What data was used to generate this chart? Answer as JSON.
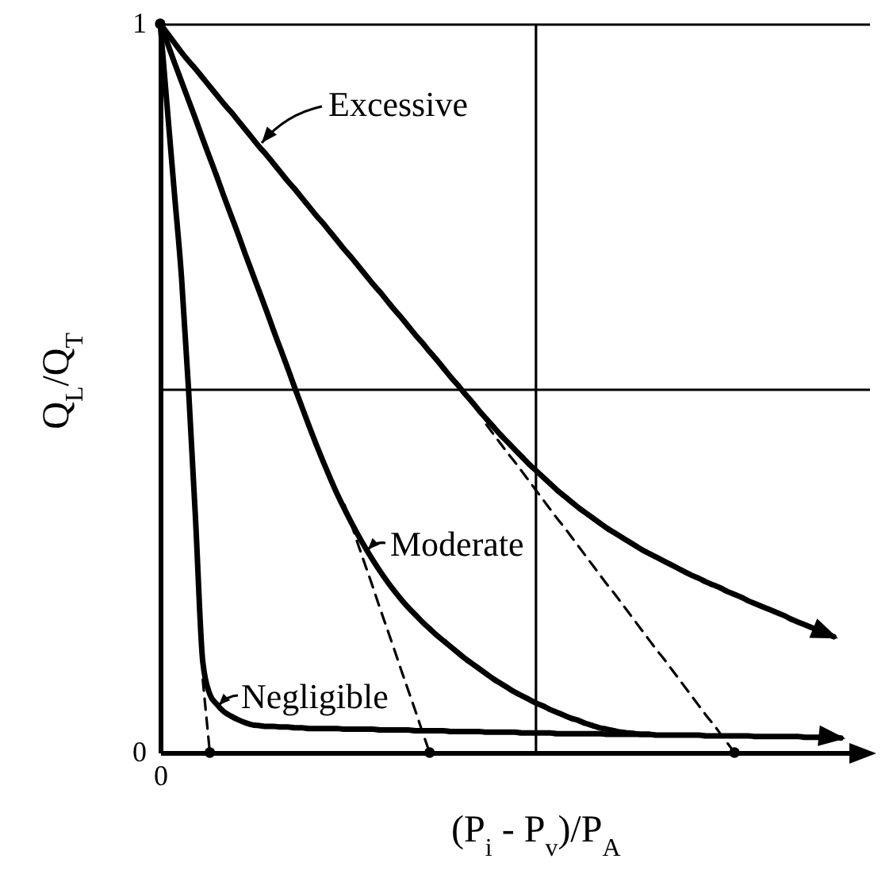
{
  "chart_data": {
    "type": "line",
    "xlabel": "(P$_{i}$ - P$_{v}$)/P$_{A}$",
    "ylabel": "Q$_{L}$/Q$_{T}$",
    "categories": [
      "0",
      null,
      null,
      null,
      null,
      null,
      null,
      null,
      null,
      null,
      null,
      null,
      null,
      null,
      null,
      null,
      null,
      null,
      null,
      null,
      null,
      null,
      null,
      null,
      null,
      null,
      null,
      null,
      null,
      null,
      null,
      null,
      null,
      null,
      null,
      null,
      null,
      null,
      null,
      null,
      null,
      null,
      null,
      null,
      null,
      null,
      null,
      null,
      null,
      null,
      null,
      null,
      null,
      null,
      null,
      null,
      null,
      null,
      null,
      null,
      null,
      null,
      null,
      null,
      null,
      null,
      null,
      null,
      null,
      null,
      null,
      null,
      null,
      null,
      null,
      null,
      null,
      null,
      null,
      null,
      null,
      null,
      null,
      null,
      null,
      null,
      null,
      null,
      null,
      null,
      null,
      null,
      null,
      null,
      null,
      null,
      null,
      null,
      null,
      null,
      null
    ],
    "ylim": [
      0,
      1
    ],
    "yticks": [
      0,
      {
        "value": 0.5,
        "label": null
      },
      1
    ],
    "grid": "y",
    "marker": "none",
    "legend": "left",
    "series": [
      {
        "name": "Excessive",
        "color": "#000000",
        "values": [
          1,
          0.987,
          0.974,
          0.961,
          0.949,
          0.938,
          0.926,
          0.914,
          0.902,
          0.89,
          0.879,
          0.867,
          0.855,
          0.843,
          0.831,
          0.82,
          0.808,
          0.796,
          0.784,
          0.773,
          0.761,
          0.749,
          0.737,
          0.726,
          0.714,
          0.702,
          0.69,
          0.679,
          0.667,
          0.655,
          0.643,
          0.632,
          0.62,
          0.608,
          0.597,
          0.585,
          0.573,
          0.562,
          0.55,
          0.539,
          0.527,
          0.515,
          0.504,
          0.492,
          0.481,
          0.469,
          0.458,
          0.447,
          0.436,
          0.426,
          0.416,
          0.406,
          0.396,
          0.387,
          0.378,
          0.369,
          0.36,
          0.352,
          0.344,
          0.336,
          0.329,
          0.322,
          0.315,
          0.308,
          0.302,
          0.296,
          0.29,
          0.284,
          0.278,
          0.273,
          0.268,
          0.263,
          0.258,
          0.253,
          0.248,
          0.243,
          0.239,
          0.234,
          0.23,
          0.226,
          0.221,
          0.217,
          0.213,
          0.208,
          0.204,
          0.2,
          0.196,
          0.192,
          0.188,
          0.183,
          0.179,
          0.175,
          0.171,
          0.167,
          0.163,
          0.159,
          null,
          null,
          null,
          null,
          null
        ]
      },
      {
        "name": "Moderate",
        "color": "#000000",
        "values": [
          1,
          0.974,
          0.947,
          0.921,
          0.895,
          0.869,
          0.842,
          0.816,
          0.79,
          0.763,
          0.737,
          0.711,
          0.684,
          0.658,
          0.632,
          0.606,
          0.579,
          0.553,
          0.527,
          0.5,
          0.474,
          0.448,
          0.423,
          0.399,
          0.376,
          0.354,
          0.334,
          0.315,
          0.297,
          0.28,
          0.264,
          0.249,
          0.235,
          0.222,
          0.21,
          0.199,
          0.189,
          0.179,
          0.17,
          0.161,
          0.153,
          0.145,
          0.137,
          0.129,
          0.122,
          0.115,
          0.108,
          0.101,
          0.095,
          0.089,
          0.083,
          0.078,
          0.073,
          0.068,
          0.064,
          0.059,
          0.055,
          0.051,
          0.047,
          0.044,
          0.04,
          0.037,
          0.034,
          0.032,
          0.03,
          0.028,
          0.027,
          0.026,
          0.025,
          0.025,
          null,
          null,
          null,
          null,
          null,
          null,
          null,
          null,
          null,
          null,
          null,
          null,
          null,
          null,
          null,
          null,
          null,
          null,
          null,
          null,
          null,
          null,
          null,
          null,
          null,
          null,
          null,
          null,
          null,
          null,
          null
        ]
      },
      {
        "name": "Negligible",
        "color": "#000000",
        "values": [
          1,
          0.884,
          0.768,
          0.653,
          0.498,
          0.317,
          0.125,
          0.08,
          0.066,
          0.056,
          0.05,
          0.045,
          0.041,
          0.038,
          0.037,
          0.036,
          0.036,
          0.035,
          0.035,
          0.034,
          0.034,
          0.033,
          0.033,
          0.033,
          0.033,
          0.033,
          0.032,
          0.032,
          0.032,
          0.032,
          0.032,
          0.031,
          0.031,
          0.031,
          0.031,
          0.031,
          0.03,
          0.03,
          0.03,
          0.03,
          0.03,
          0.029,
          0.029,
          0.029,
          0.029,
          0.029,
          0.028,
          0.028,
          0.028,
          0.028,
          0.028,
          0.027,
          0.027,
          0.027,
          0.027,
          0.027,
          0.026,
          0.026,
          0.026,
          0.026,
          0.026,
          0.026,
          0.026,
          0.025,
          0.025,
          0.025,
          0.025,
          0.025,
          0.025,
          0.025,
          0.024,
          0.024,
          0.024,
          0.024,
          0.024,
          0.024,
          0.024,
          0.023,
          0.023,
          0.023,
          0.023,
          0.023,
          0.023,
          0.023,
          0.022,
          0.022,
          0.022,
          0.022,
          0.022,
          0.022,
          0.022,
          0.021,
          0.021,
          0.021,
          0.021,
          0.021,
          0.02,
          null,
          null,
          null,
          null
        ]
      },
      {
        "color": "#000000",
        "line_style": "dashed",
        "values": [
          null,
          null,
          null,
          null,
          null,
          null,
          0.1,
          0,
          null,
          null,
          null,
          null,
          null,
          null,
          null,
          null,
          null,
          null,
          null,
          null,
          null,
          null,
          null,
          null,
          null,
          null,
          null,
          null,
          null,
          null,
          null,
          null,
          null,
          null,
          null,
          null,
          null,
          null,
          null,
          null,
          null,
          null,
          null,
          null,
          null,
          null,
          null,
          null,
          null,
          null,
          null,
          null,
          null,
          null,
          null,
          null,
          null,
          null,
          null,
          null,
          null,
          null,
          null,
          null,
          null,
          null,
          null,
          null,
          null,
          null,
          null,
          null,
          null,
          null,
          null,
          null,
          null,
          null,
          null,
          null,
          null,
          null,
          null,
          null,
          null,
          null,
          null,
          null,
          null,
          null,
          null,
          null,
          null,
          null,
          null,
          null,
          null,
          null,
          null,
          null,
          null
        ]
      },
      {
        "color": "#000000",
        "line_style": "dashed",
        "values": [
          null,
          null,
          null,
          null,
          null,
          null,
          null,
          null,
          null,
          null,
          null,
          null,
          null,
          null,
          null,
          null,
          null,
          null,
          null,
          null,
          null,
          null,
          null,
          null,
          null,
          null,
          0.34,
          0.312,
          0.283,
          0.255,
          0.227,
          0.198,
          0.17,
          0.142,
          0.113,
          0.085,
          0.057,
          0.028,
          0,
          null,
          null,
          null,
          null,
          null,
          null,
          null,
          null,
          null,
          null,
          null,
          null,
          null,
          null,
          null,
          null,
          null,
          null,
          null,
          null,
          null,
          null,
          null,
          null,
          null,
          null,
          null,
          null,
          null,
          null,
          null,
          null,
          null,
          null,
          null,
          null,
          null,
          null,
          null,
          null,
          null,
          null,
          null,
          null,
          null,
          null,
          null,
          null,
          null,
          null,
          null,
          null,
          null,
          null,
          null,
          null,
          null,
          null,
          null,
          null,
          null,
          null
        ]
      },
      {
        "color": "#000000",
        "line_style": "dashed",
        "values": [
          null,
          null,
          null,
          null,
          null,
          null,
          null,
          null,
          null,
          null,
          null,
          null,
          null,
          null,
          null,
          null,
          null,
          null,
          null,
          null,
          null,
          null,
          null,
          null,
          null,
          null,
          null,
          null,
          null,
          null,
          null,
          null,
          null,
          null,
          null,
          null,
          null,
          null,
          null,
          null,
          null,
          null,
          null,
          null,
          null,
          null,
          0.45,
          0.437,
          0.424,
          0.411,
          0.399,
          0.386,
          0.373,
          0.36,
          0.347,
          0.334,
          0.321,
          0.309,
          0.296,
          0.283,
          0.27,
          0.257,
          0.244,
          0.231,
          0.219,
          0.206,
          0.193,
          0.18,
          0.167,
          0.154,
          0.141,
          0.129,
          0.116,
          0.103,
          0.09,
          0.077,
          0.064,
          0.051,
          0.039,
          0.026,
          0.013,
          0,
          null,
          null,
          null,
          null,
          null,
          null,
          null,
          null,
          null,
          null,
          null,
          null,
          null,
          null,
          null,
          null,
          null,
          null,
          null
        ]
      },
      {
        "type": "scatter",
        "color": "#000000",
        "marker": "circle",
        "values": [
          1,
          null,
          null,
          null,
          null,
          null,
          null,
          0,
          null,
          null,
          null,
          null,
          null,
          null,
          null,
          null,
          null,
          null,
          null,
          null,
          null,
          null,
          null,
          null,
          null,
          null,
          null,
          null,
          null,
          null,
          null,
          null,
          null,
          null,
          null,
          null,
          null,
          null,
          0,
          null,
          null,
          null,
          null,
          null,
          null,
          null,
          null,
          null,
          null,
          null,
          null,
          null,
          null,
          null,
          null,
          null,
          null,
          null,
          null,
          null,
          null,
          null,
          null,
          null,
          null,
          null,
          null,
          null,
          null,
          null,
          null,
          null,
          null,
          null,
          null,
          null,
          null,
          null,
          null,
          null,
          null,
          0,
          null,
          null,
          null,
          null,
          null,
          null,
          null,
          null,
          null,
          null,
          null,
          null,
          null,
          null,
          null,
          null,
          null,
          null,
          null
        ]
      }
    ]
  }
}
